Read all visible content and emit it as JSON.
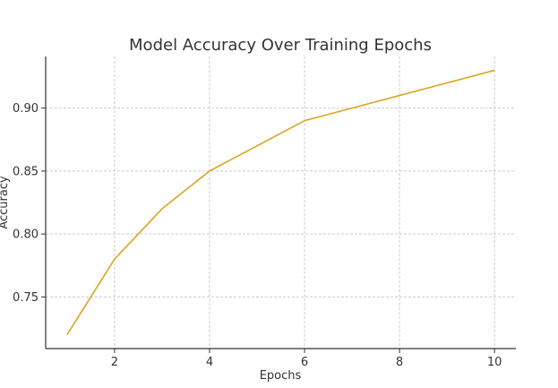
{
  "chart_data": {
    "type": "line",
    "title": "Model Accuracy Over Training Epochs",
    "xlabel": "Epochs",
    "ylabel": "Accuracy",
    "xlim": [
      0.55,
      10.45
    ],
    "ylim": [
      0.709,
      0.941
    ],
    "x_ticks": [
      2,
      4,
      6,
      8,
      10
    ],
    "y_ticks": [
      0.75,
      0.8,
      0.85,
      0.9
    ],
    "y_tick_labels": [
      "0.75",
      "0.80",
      "0.85",
      "0.90"
    ],
    "grid": true,
    "series": [
      {
        "x": [
          1,
          2,
          3,
          4,
          5,
          6,
          7,
          8,
          9,
          10
        ],
        "values": [
          0.72,
          0.78,
          0.82,
          0.85,
          0.87,
          0.89,
          0.9,
          0.91,
          0.92,
          0.93
        ],
        "color": "#DAA520"
      }
    ]
  }
}
